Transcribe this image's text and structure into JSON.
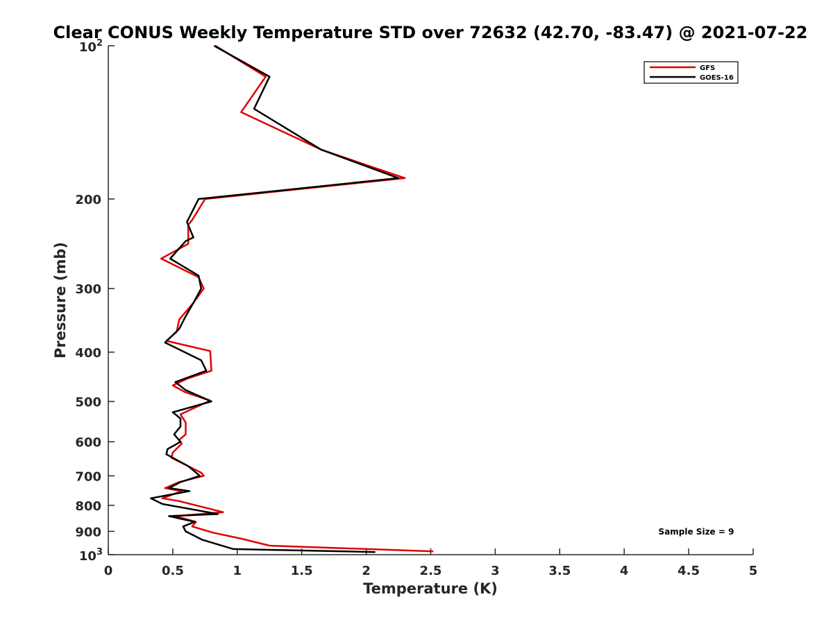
{
  "chart_data": {
    "type": "line",
    "title": "Clear CONUS Weekly Temperature STD over 72632 (42.70, -83.47) @ 2021-07-22",
    "xlabel": "Temperature (K)",
    "ylabel": "Pressure (mb)",
    "xlim": [
      0,
      5
    ],
    "ylim": [
      100,
      1000
    ],
    "y_scale": "log",
    "y_reversed": true,
    "x_ticks": [
      "0",
      "0.5",
      "1",
      "1.5",
      "2",
      "2.5",
      "3",
      "3.5",
      "4",
      "4.5",
      "5"
    ],
    "x_tick_values": [
      0,
      0.5,
      1,
      1.5,
      2,
      2.5,
      3,
      3.5,
      4,
      4.5,
      5
    ],
    "y_ticks": [
      {
        "value": 100,
        "label": "10",
        "sup": "2"
      },
      {
        "value": 200,
        "label": "200"
      },
      {
        "value": 300,
        "label": "300"
      },
      {
        "value": 400,
        "label": "400"
      },
      {
        "value": 500,
        "label": "500"
      },
      {
        "value": 600,
        "label": "600"
      },
      {
        "value": 700,
        "label": "700"
      },
      {
        "value": 800,
        "label": "800"
      },
      {
        "value": 900,
        "label": "900"
      },
      {
        "value": 1000,
        "label": "10",
        "sup": "3"
      }
    ],
    "legend_position": "top-right",
    "annotation": "Sample Size = 9",
    "series": [
      {
        "name": "GFS",
        "color": "#e00000",
        "points": [
          [
            0.83,
            100
          ],
          [
            1.22,
            115
          ],
          [
            1.03,
            135
          ],
          [
            1.65,
            160
          ],
          [
            2.3,
            182
          ],
          [
            0.75,
            200
          ],
          [
            0.65,
            220
          ],
          [
            0.62,
            225
          ],
          [
            0.62,
            245
          ],
          [
            0.41,
            262
          ],
          [
            0.7,
            285
          ],
          [
            0.74,
            300
          ],
          [
            0.66,
            320
          ],
          [
            0.55,
            345
          ],
          [
            0.53,
            365
          ],
          [
            0.45,
            380
          ],
          [
            0.79,
            398
          ],
          [
            0.8,
            435
          ],
          [
            0.62,
            450
          ],
          [
            0.5,
            465
          ],
          [
            0.6,
            480
          ],
          [
            0.79,
            498
          ],
          [
            0.56,
            530
          ],
          [
            0.6,
            550
          ],
          [
            0.6,
            580
          ],
          [
            0.55,
            595
          ],
          [
            0.57,
            605
          ],
          [
            0.5,
            630
          ],
          [
            0.49,
            645
          ],
          [
            0.72,
            690
          ],
          [
            0.74,
            700
          ],
          [
            0.55,
            720
          ],
          [
            0.44,
            740
          ],
          [
            0.57,
            750
          ],
          [
            0.42,
            775
          ],
          [
            0.55,
            785
          ],
          [
            0.89,
            825
          ],
          [
            0.52,
            840
          ],
          [
            0.68,
            862
          ],
          [
            0.65,
            880
          ],
          [
            0.81,
            905
          ],
          [
            1.03,
            930
          ],
          [
            1.25,
            960
          ],
          [
            2.52,
            985
          ]
        ]
      },
      {
        "name": "GOES-16",
        "color": "#000000",
        "points": [
          [
            0.82,
            100
          ],
          [
            1.25,
            115
          ],
          [
            1.13,
            133
          ],
          [
            1.65,
            160
          ],
          [
            2.25,
            182
          ],
          [
            0.7,
            200
          ],
          [
            0.61,
            222
          ],
          [
            0.66,
            238
          ],
          [
            0.6,
            242
          ],
          [
            0.48,
            262
          ],
          [
            0.7,
            283
          ],
          [
            0.72,
            300
          ],
          [
            0.66,
            320
          ],
          [
            0.6,
            340
          ],
          [
            0.55,
            360
          ],
          [
            0.44,
            383
          ],
          [
            0.72,
            415
          ],
          [
            0.76,
            435
          ],
          [
            0.52,
            458
          ],
          [
            0.6,
            475
          ],
          [
            0.8,
            500
          ],
          [
            0.5,
            525
          ],
          [
            0.56,
            540
          ],
          [
            0.56,
            560
          ],
          [
            0.51,
            580
          ],
          [
            0.56,
            600
          ],
          [
            0.46,
            620
          ],
          [
            0.45,
            635
          ],
          [
            0.62,
            670
          ],
          [
            0.71,
            700
          ],
          [
            0.56,
            720
          ],
          [
            0.47,
            740
          ],
          [
            0.63,
            750
          ],
          [
            0.33,
            775
          ],
          [
            0.42,
            795
          ],
          [
            0.85,
            832
          ],
          [
            0.47,
            840
          ],
          [
            0.67,
            862
          ],
          [
            0.58,
            880
          ],
          [
            0.6,
            900
          ],
          [
            0.73,
            935
          ],
          [
            0.97,
            975
          ],
          [
            2.07,
            988
          ]
        ]
      }
    ]
  }
}
